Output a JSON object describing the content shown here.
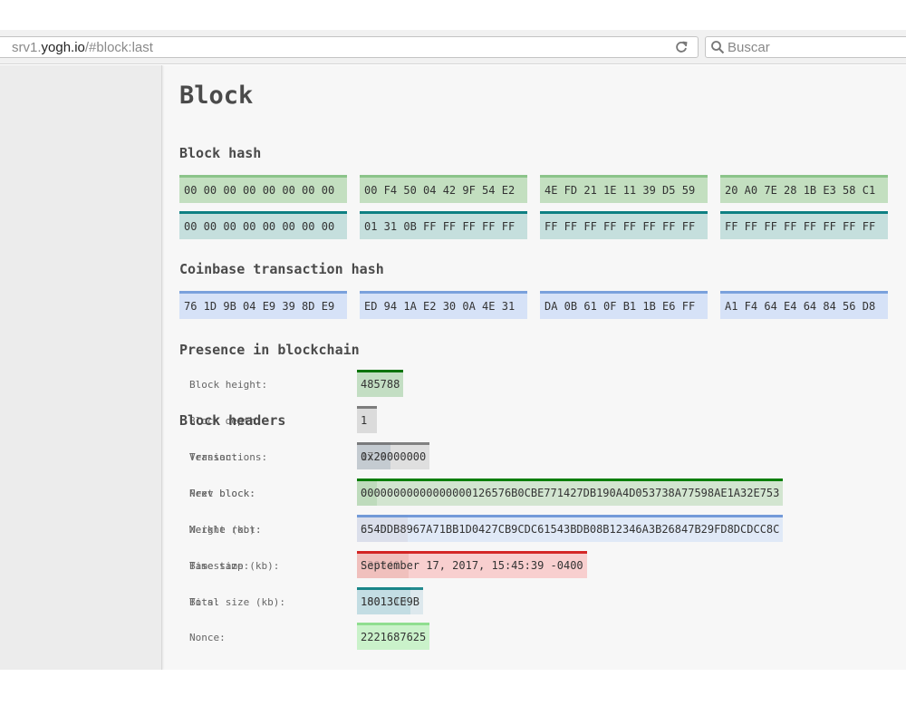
{
  "browser": {
    "url_prefix": "srv1.",
    "url_domain": "yogh.io",
    "url_path": "/#block:last",
    "reload_icon": "reload-icon",
    "search_placeholder": "Buscar",
    "search_icon": "search-icon"
  },
  "page": {
    "title": "Block",
    "block_hash": {
      "title": "Block hash",
      "row1": [
        "00 00 00 00 00 00 00 00",
        "00 F4 50 04 42 9F 54 E2",
        "4E FD 21 1E 11 39 D5 59",
        "20 A0 7E 28 1B E3 58 C1"
      ],
      "row2": [
        "00 00 00 00 00 00 00 00",
        "01 31 0B FF FF FF FF FF",
        "FF FF FF FF FF FF FF FF",
        "FF FF FF FF FF FF FF FF"
      ]
    },
    "coinbase": {
      "title": "Coinbase transaction hash",
      "row": [
        "76 1D 9B 04 E9 39 8D E9",
        "ED 94 1A E2 30 0A 4E 31",
        "DA 0B 61 0F B1 1B E6 FF",
        "A1 F4 64 E4 64 84 56 D8"
      ]
    },
    "presence": {
      "title": "Presence in blockchain",
      "rows": [
        {
          "label": "Block height:",
          "value": "485788"
        },
        {
          "label": "Block depth:",
          "value": "1"
        },
        {
          "label": "Transactions:",
          "value": "1729"
        },
        {
          "label": "Next block:",
          "value": "0"
        },
        {
          "label": "Weight (kb):",
          "value": "3545"
        },
        {
          "label": "Base size (kb):",
          "value": "839840"
        },
        {
          "label": "Total size (kb):",
          "value": "1001310"
        }
      ]
    },
    "headers": {
      "title": "Block headers",
      "rows": [
        {
          "label": "Version:",
          "value": "0x20000000"
        },
        {
          "label": "Prev block:",
          "value": "00000000000000000126576B0CBE771427DB190A4D053738A77598AE1A32E753"
        },
        {
          "label": "Merkle root:",
          "value": "654DDB8967A71BB1D0427CB9CDC61543BDB08B12346A3B26847B29FD8DCDCC8C"
        },
        {
          "label": "Timestamp:",
          "value": "September 17, 2017, 15:45:39 -0400"
        },
        {
          "label": "Bits:",
          "value": "18013CE9B"
        },
        {
          "label": "Nonce:",
          "value": "2221687625"
        }
      ]
    }
  },
  "colors": {
    "green_bg": "#c3dfc0",
    "green_border": "#8cc48a",
    "teal_bg": "#c5dfdd",
    "teal_border": "#0e8083",
    "blue_bg": "#d6e2f7",
    "blue_border": "#7aa1dc"
  }
}
